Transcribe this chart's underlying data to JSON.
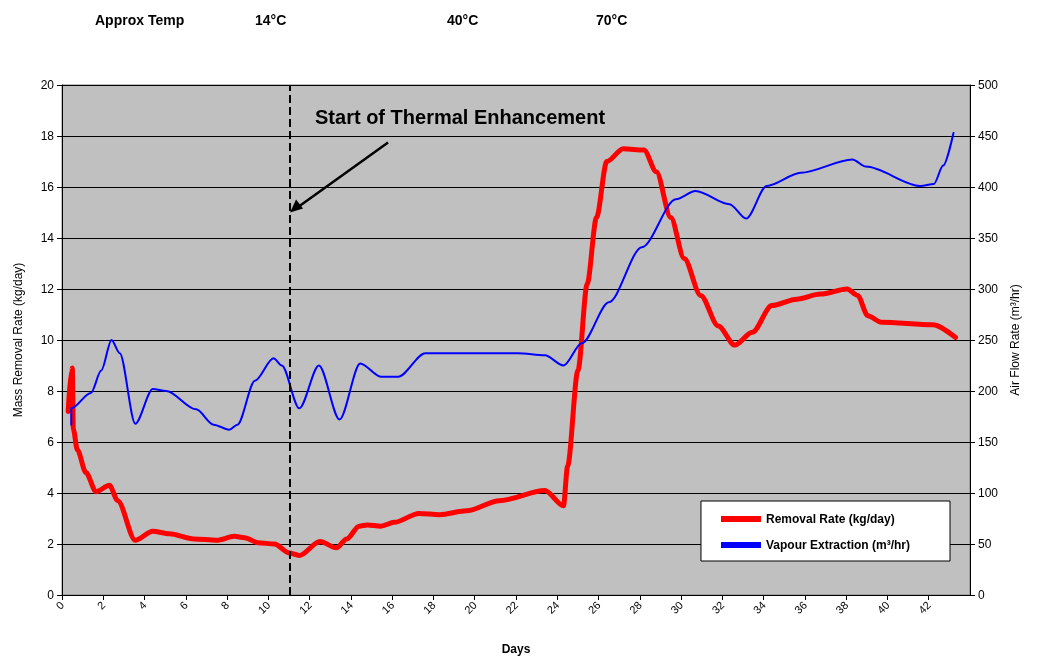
{
  "chart_data": {
    "type": "line",
    "xlabel": "Days",
    "ylabel": "Mass Removal Rate (kg/day)",
    "y2label": "Air Flow Rate (m³/hr)",
    "xlim": [
      0,
      44
    ],
    "xticks": [
      0,
      2,
      4,
      6,
      8,
      10,
      12,
      14,
      16,
      18,
      20,
      22,
      24,
      26,
      28,
      30,
      32,
      34,
      36,
      38,
      40,
      42
    ],
    "ylim": [
      0,
      20
    ],
    "yticks": [
      0,
      2,
      4,
      6,
      8,
      10,
      12,
      14,
      16,
      18,
      20
    ],
    "y2lim": [
      0,
      500
    ],
    "y2ticks": [
      0,
      50,
      100,
      150,
      200,
      250,
      300,
      350,
      400,
      450,
      500
    ],
    "grid": "y",
    "legend": "bottom right",
    "marker": "none",
    "line_style": "solid",
    "series": [
      {
        "name": "Removal Rate (kg/day)",
        "color": "#ff0000",
        "x": [
          0.3,
          0.45,
          0.5,
          0.55,
          0.74,
          1.16,
          1.65,
          2.3,
          2.7,
          3.55,
          4.4,
          5.2,
          6.4,
          7.5,
          8.35,
          8.85,
          9.5,
          10.3,
          11.0,
          11.5,
          12.5,
          13.3,
          13.8,
          14.4,
          14.8,
          15.45,
          16.1,
          17.3,
          18.3,
          19.6,
          21.2,
          23.4,
          24.3,
          24.5,
          25.0,
          25.45,
          25.9,
          26.4,
          27.2,
          28.2,
          28.8,
          29.5,
          30.15,
          30.95,
          31.8,
          32.6,
          33.45,
          34.4,
          35.6,
          36.75,
          38.05,
          38.55,
          39.05,
          39.7,
          42.2,
          43.3
        ],
        "values": [
          7.2,
          8.8,
          8.9,
          6.5,
          5.7,
          4.8,
          4.05,
          4.3,
          3.7,
          2.15,
          2.5,
          2.4,
          2.2,
          2.15,
          2.3,
          2.25,
          2.05,
          2.0,
          1.65,
          1.55,
          2.1,
          1.85,
          2.2,
          2.7,
          2.75,
          2.7,
          2.85,
          3.2,
          3.15,
          3.3,
          3.7,
          4.1,
          3.5,
          5.05,
          8.8,
          12.2,
          14.8,
          17.0,
          17.5,
          17.45,
          16.6,
          14.8,
          13.2,
          11.75,
          10.55,
          9.8,
          10.3,
          11.35,
          11.6,
          11.8,
          12.0,
          11.75,
          10.95,
          10.7,
          10.6,
          10.1
        ]
      },
      {
        "name": "Vapour Extraction (m³/hr)",
        "color": "#0000ff",
        "axis": "y2",
        "x": [
          0.45,
          0.45,
          1.4,
          1.9,
          2.4,
          2.8,
          3.55,
          4.4,
          5.05,
          6.5,
          7.35,
          8.1,
          8.5,
          9.35,
          10.25,
          10.65,
          11.5,
          12.45,
          13.45,
          14.45,
          15.45,
          16.3,
          17.6,
          22.1,
          23.4,
          24.3,
          25.2,
          26.5,
          28.1,
          29.75,
          30.7,
          32.35,
          33.15,
          34.15,
          35.8,
          38.3,
          38.95,
          41.6,
          42.25,
          42.7,
          43.2
        ],
        "values": [
          167,
          183,
          198,
          220,
          250,
          237,
          168,
          202,
          200,
          182,
          167,
          162,
          167,
          210,
          232,
          225,
          183,
          225,
          172,
          227,
          214,
          214,
          237,
          237,
          235,
          225,
          247,
          287,
          341,
          388,
          396,
          383,
          369,
          401,
          414,
          427,
          420,
          401,
          403,
          421,
          453
        ]
      }
    ],
    "ref_lines": [
      {
        "axis": "x",
        "value": 11.05,
        "color": "#000000",
        "line_style": "dashed"
      }
    ],
    "annotations": [
      {
        "text": "Start of Thermal Enhancement",
        "x": 11.05,
        "y": 15
      },
      "Approx Temp",
      "14°C",
      "40°C",
      "70°C"
    ]
  }
}
